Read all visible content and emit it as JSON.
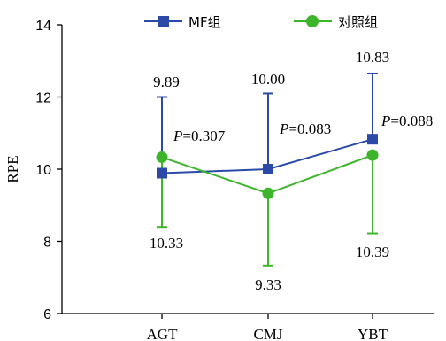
{
  "chart_data": {
    "type": "line",
    "ylabel": "RPE",
    "xlabel": "",
    "ylim": [
      6,
      14
    ],
    "yticks": [
      6,
      8,
      10,
      12,
      14
    ],
    "categories": [
      "AGT",
      "CMJ",
      "YBT"
    ],
    "series": [
      {
        "name": "MF组",
        "color": "#2b4aa8",
        "marker": "square",
        "values": [
          9.89,
          10.0,
          10.83
        ],
        "value_labels": [
          "9.89",
          "10.00",
          "10.83"
        ],
        "error_upper": [
          12.0,
          12.1,
          12.65
        ]
      },
      {
        "name": "对照组",
        "color": "#3db52b",
        "marker": "circle",
        "values": [
          10.33,
          9.33,
          10.39
        ],
        "value_labels": [
          "10.33",
          "9.33",
          "10.39"
        ],
        "error_lower": [
          8.4,
          7.33,
          8.22
        ]
      }
    ],
    "annotations": [
      {
        "italic": "P",
        "rest": "=0.307"
      },
      {
        "italic": "P",
        "rest": "=0.083"
      },
      {
        "italic": "P",
        "rest": "=0.088"
      }
    ],
    "legend_position": "top",
    "grid": false
  }
}
